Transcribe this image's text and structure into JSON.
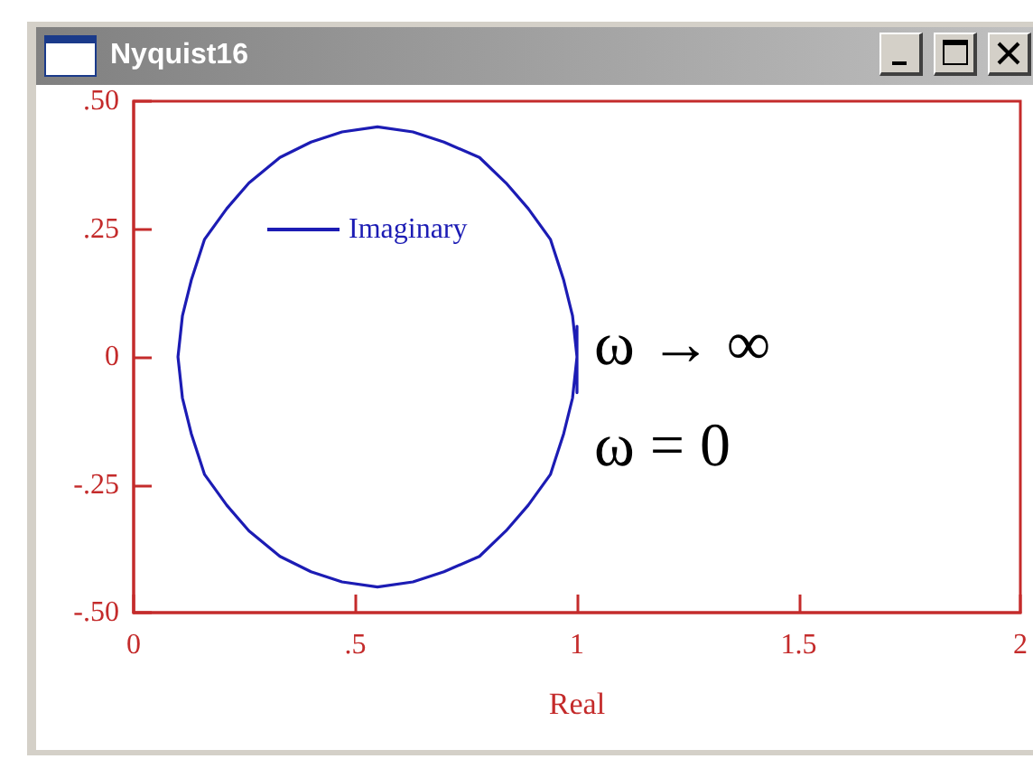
{
  "chart_data": {
    "type": "line",
    "title": "Nyquist16",
    "xlabel": "Real",
    "series": [
      {
        "name": "Imaginary",
        "color": "#1c1cb4",
        "x": [
          1.0,
          1.0,
          0.99,
          0.97,
          0.94,
          0.89,
          0.84,
          0.78,
          0.7,
          0.63,
          0.55,
          0.47,
          0.4,
          0.33,
          0.26,
          0.21,
          0.16,
          0.13,
          0.11,
          0.1,
          0.11,
          0.13,
          0.16,
          0.21,
          0.26,
          0.33,
          0.4,
          0.47,
          0.55,
          0.63,
          0.7,
          0.78,
          0.84,
          0.89,
          0.94,
          0.97,
          0.99,
          1.0,
          1.0
        ],
        "values": [
          -0.07,
          0.0,
          0.08,
          0.15,
          0.23,
          0.29,
          0.34,
          0.39,
          0.42,
          0.44,
          0.45,
          0.44,
          0.42,
          0.39,
          0.34,
          0.29,
          0.23,
          0.15,
          0.08,
          0.0,
          -0.08,
          -0.15,
          -0.23,
          -0.29,
          -0.34,
          -0.39,
          -0.42,
          -0.44,
          -0.45,
          -0.44,
          -0.42,
          -0.39,
          -0.34,
          -0.29,
          -0.23,
          -0.15,
          -0.08,
          0.0,
          0.06
        ]
      }
    ],
    "xlim": [
      0,
      2
    ],
    "xticks": [
      0,
      {
        "value": 0.5,
        "label": ".5"
      },
      1,
      1.5,
      2
    ],
    "ylim": [
      -0.5,
      0.5
    ],
    "yticks": [
      {
        "value": -0.5,
        "label": "-.50"
      },
      {
        "value": -0.25,
        "label": "-.25"
      },
      0,
      {
        "value": 0.25,
        "label": ".25"
      },
      {
        "value": 0.5,
        "label": ".50"
      }
    ],
    "grid": false,
    "legend": "top left",
    "annotations": [
      "ω → ∞",
      "ω = 0"
    ]
  }
}
